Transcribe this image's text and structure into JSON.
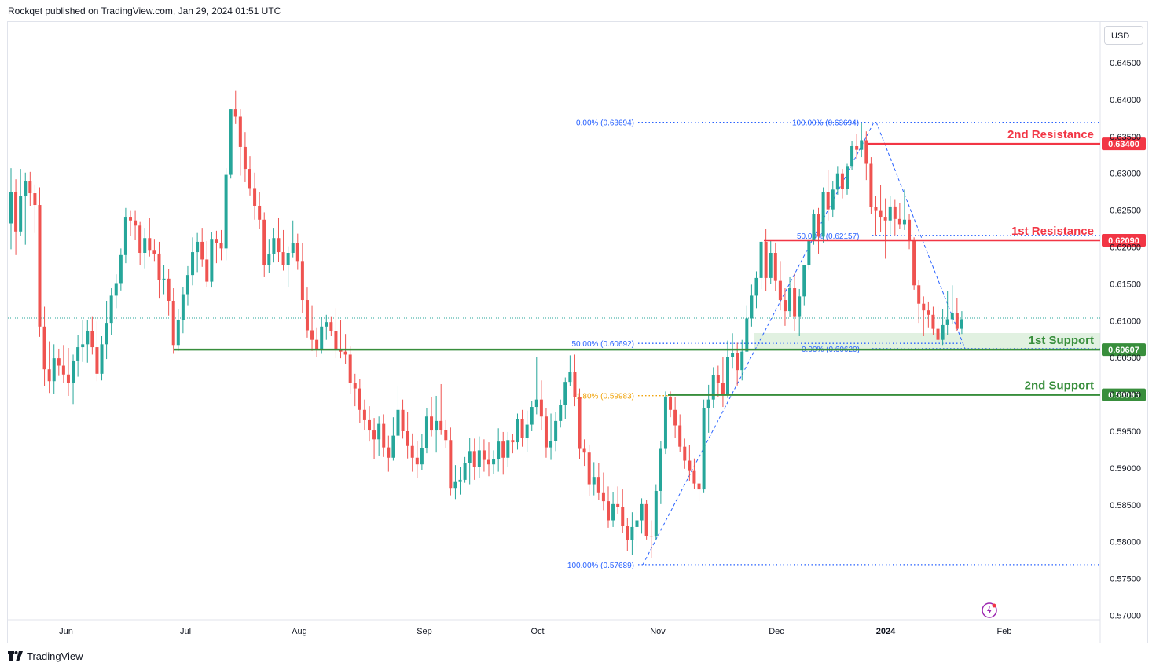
{
  "header": {
    "publisher": "Rockqet published on TradingView.com, Jan 29, 2024 01:51 UTC"
  },
  "currency": "USD",
  "footer": {
    "brand": "TradingView"
  },
  "colors": {
    "up": "#26a69a",
    "down": "#ef5350",
    "resistance": "#f23645",
    "support": "#388e3c",
    "fib": "#2962ff",
    "fib_ext": "#f0a30a",
    "support_zone": "#c8e6c9"
  },
  "chart_data": {
    "type": "candlestick",
    "title": "",
    "xlabel": "",
    "ylabel": "",
    "ylim": [
      0.5665,
      0.6485
    ],
    "x_ticks": [
      "Jun",
      "Jul",
      "Aug",
      "Sep",
      "Oct",
      "Nov",
      "Dec",
      "2024",
      "Feb"
    ],
    "y_ticks": [
      "0.64500",
      "0.64000",
      "0.63500",
      "0.63000",
      "0.62500",
      "0.62000",
      "0.61500",
      "0.61000",
      "0.60500",
      "0.60000",
      "0.59500",
      "0.59000",
      "0.58500",
      "0.58000",
      "0.57500",
      "0.57000"
    ],
    "grid": false,
    "last_price": 0.6102,
    "horizontal_levels": [
      {
        "label": "2nd Resistance",
        "value": 0.634,
        "tag": "0.63400",
        "kind": "resistance"
      },
      {
        "label": "1st Resistance",
        "value": 0.6209,
        "tag": "0.62090",
        "kind": "resistance"
      },
      {
        "label": "1st Support",
        "value": 0.60607,
        "tag": "0.60607",
        "kind": "support"
      },
      {
        "label": "2nd Support",
        "value": 0.59995,
        "tag": "0.59995",
        "kind": "support"
      }
    ],
    "fib_labels": [
      {
        "text": "0.00% (0.63694)",
        "value": 0.63694
      },
      {
        "text": "100.00% (0.63694)",
        "value": 0.63694
      },
      {
        "text": "50.00% (0.62157)",
        "value": 0.62157
      },
      {
        "text": "50.00% (0.60692)",
        "value": 0.60692
      },
      {
        "text": "0.00% (0.60620)",
        "value": 0.6062
      },
      {
        "text": "1.80% (0.59983)",
        "value": 0.59983
      },
      {
        "text": "100.00% (0.57689)",
        "value": 0.57689
      }
    ],
    "ohlc": [
      [
        0.6232,
        0.6307,
        0.6197,
        0.6275
      ],
      [
        0.6275,
        0.6292,
        0.6189,
        0.6221
      ],
      [
        0.6221,
        0.6306,
        0.6215,
        0.6269
      ],
      [
        0.6269,
        0.6301,
        0.6203,
        0.6289
      ],
      [
        0.6289,
        0.6302,
        0.6256,
        0.6273
      ],
      [
        0.6273,
        0.6285,
        0.6219,
        0.6257
      ],
      [
        0.6257,
        0.6281,
        0.6078,
        0.6092
      ],
      [
        0.6092,
        0.6119,
        0.6011,
        0.6034
      ],
      [
        0.6034,
        0.6072,
        0.6002,
        0.6018
      ],
      [
        0.6018,
        0.6068,
        0.6001,
        0.6049
      ],
      [
        0.6049,
        0.6062,
        0.6025,
        0.6039
      ],
      [
        0.6039,
        0.6067,
        0.6016,
        0.6027
      ],
      [
        0.6027,
        0.6063,
        0.5998,
        0.6016
      ],
      [
        0.6016,
        0.6054,
        0.5987,
        0.6046
      ],
      [
        0.6046,
        0.6081,
        0.6024,
        0.6064
      ],
      [
        0.6064,
        0.6101,
        0.6044,
        0.6068
      ],
      [
        0.6068,
        0.6101,
        0.6043,
        0.6086
      ],
      [
        0.6086,
        0.6106,
        0.6054,
        0.6064
      ],
      [
        0.6064,
        0.6099,
        0.6018,
        0.6028
      ],
      [
        0.6028,
        0.6079,
        0.6019,
        0.6068
      ],
      [
        0.6068,
        0.6127,
        0.6048,
        0.6097
      ],
      [
        0.6097,
        0.6144,
        0.6081,
        0.6134
      ],
      [
        0.6134,
        0.6163,
        0.6117,
        0.6151
      ],
      [
        0.6151,
        0.6198,
        0.6141,
        0.6189
      ],
      [
        0.6189,
        0.6253,
        0.6178,
        0.6241
      ],
      [
        0.6241,
        0.625,
        0.6215,
        0.6236
      ],
      [
        0.6236,
        0.625,
        0.621,
        0.6229
      ],
      [
        0.6229,
        0.6235,
        0.6175,
        0.6192
      ],
      [
        0.6192,
        0.6226,
        0.6171,
        0.6212
      ],
      [
        0.6212,
        0.6239,
        0.6187,
        0.6196
      ],
      [
        0.6196,
        0.6211,
        0.6181,
        0.6191
      ],
      [
        0.6191,
        0.6207,
        0.613,
        0.6155
      ],
      [
        0.6155,
        0.6175,
        0.6136,
        0.6157
      ],
      [
        0.6157,
        0.617,
        0.6107,
        0.6127
      ],
      [
        0.6127,
        0.6144,
        0.6055,
        0.6067
      ],
      [
        0.6067,
        0.6116,
        0.6059,
        0.6101
      ],
      [
        0.6101,
        0.6146,
        0.6083,
        0.6136
      ],
      [
        0.6136,
        0.6174,
        0.6121,
        0.6162
      ],
      [
        0.6162,
        0.6213,
        0.6148,
        0.6193
      ],
      [
        0.6193,
        0.6219,
        0.6166,
        0.6207
      ],
      [
        0.6207,
        0.6226,
        0.6173,
        0.6183
      ],
      [
        0.6183,
        0.6208,
        0.6146,
        0.6153
      ],
      [
        0.6153,
        0.622,
        0.6145,
        0.6211
      ],
      [
        0.6211,
        0.6222,
        0.6178,
        0.6205
      ],
      [
        0.6205,
        0.6223,
        0.6182,
        0.6198
      ],
      [
        0.6198,
        0.6307,
        0.6182,
        0.6298
      ],
      [
        0.6298,
        0.6387,
        0.6293,
        0.6387
      ],
      [
        0.6387,
        0.6412,
        0.6367,
        0.6377
      ],
      [
        0.6377,
        0.6387,
        0.6297,
        0.6336
      ],
      [
        0.6336,
        0.6356,
        0.6288,
        0.6306
      ],
      [
        0.6306,
        0.6323,
        0.627,
        0.628
      ],
      [
        0.628,
        0.6301,
        0.6237,
        0.6256
      ],
      [
        0.6256,
        0.6275,
        0.6224,
        0.6237
      ],
      [
        0.6237,
        0.6247,
        0.6159,
        0.6176
      ],
      [
        0.6176,
        0.6211,
        0.6165,
        0.619
      ],
      [
        0.619,
        0.6226,
        0.6179,
        0.6212
      ],
      [
        0.6212,
        0.624,
        0.618,
        0.6193
      ],
      [
        0.6193,
        0.6223,
        0.6168,
        0.6175
      ],
      [
        0.6175,
        0.6201,
        0.6146,
        0.6192
      ],
      [
        0.6192,
        0.6236,
        0.6186,
        0.6205
      ],
      [
        0.6205,
        0.6218,
        0.6169,
        0.6181
      ],
      [
        0.6181,
        0.6205,
        0.611,
        0.6128
      ],
      [
        0.6128,
        0.6145,
        0.6077,
        0.6087
      ],
      [
        0.6087,
        0.6121,
        0.6059,
        0.6074
      ],
      [
        0.6074,
        0.6091,
        0.6051,
        0.606
      ],
      [
        0.606,
        0.6105,
        0.6055,
        0.6092
      ],
      [
        0.6092,
        0.6108,
        0.6074,
        0.6098
      ],
      [
        0.6098,
        0.6106,
        0.6079,
        0.6086
      ],
      [
        0.6086,
        0.6117,
        0.6049,
        0.6061
      ],
      [
        0.6061,
        0.6101,
        0.6049,
        0.6058
      ],
      [
        0.6058,
        0.6082,
        0.6041,
        0.6054
      ],
      [
        0.6054,
        0.6065,
        0.6001,
        0.6016
      ],
      [
        0.6016,
        0.6028,
        0.5984,
        0.6008
      ],
      [
        0.6008,
        0.6021,
        0.5961,
        0.5979
      ],
      [
        0.5979,
        0.5993,
        0.5952,
        0.5965
      ],
      [
        0.5965,
        0.5984,
        0.5936,
        0.5951
      ],
      [
        0.5951,
        0.5968,
        0.5912,
        0.5939
      ],
      [
        0.5939,
        0.597,
        0.5917,
        0.596
      ],
      [
        0.596,
        0.5973,
        0.5915,
        0.5928
      ],
      [
        0.5928,
        0.5944,
        0.5895,
        0.5914
      ],
      [
        0.5914,
        0.5969,
        0.591,
        0.5944
      ],
      [
        0.5944,
        0.6011,
        0.593,
        0.5979
      ],
      [
        0.5979,
        0.5993,
        0.594,
        0.595
      ],
      [
        0.595,
        0.5976,
        0.5913,
        0.593
      ],
      [
        0.593,
        0.5947,
        0.5895,
        0.5914
      ],
      [
        0.5914,
        0.5937,
        0.5886,
        0.5905
      ],
      [
        0.5905,
        0.5946,
        0.5897,
        0.5927
      ],
      [
        0.5927,
        0.5982,
        0.592,
        0.597
      ],
      [
        0.597,
        0.5996,
        0.5943,
        0.5951
      ],
      [
        0.5951,
        0.5998,
        0.5921,
        0.5964
      ],
      [
        0.5964,
        0.6014,
        0.5945,
        0.5952
      ],
      [
        0.5952,
        0.5965,
        0.5927,
        0.5938
      ],
      [
        0.5938,
        0.5955,
        0.5863,
        0.5873
      ],
      [
        0.5873,
        0.5904,
        0.5858,
        0.5881
      ],
      [
        0.5881,
        0.5901,
        0.5864,
        0.5884
      ],
      [
        0.5884,
        0.5915,
        0.588,
        0.5907
      ],
      [
        0.5907,
        0.5941,
        0.5878,
        0.5923
      ],
      [
        0.5923,
        0.594,
        0.5884,
        0.5902
      ],
      [
        0.5902,
        0.5943,
        0.5887,
        0.5924
      ],
      [
        0.5924,
        0.5939,
        0.5895,
        0.5911
      ],
      [
        0.5911,
        0.5935,
        0.5889,
        0.5905
      ],
      [
        0.5905,
        0.5924,
        0.5892,
        0.5912
      ],
      [
        0.5912,
        0.5954,
        0.5895,
        0.5936
      ],
      [
        0.5936,
        0.5949,
        0.5891,
        0.5914
      ],
      [
        0.5914,
        0.5949,
        0.5901,
        0.5938
      ],
      [
        0.5938,
        0.5946,
        0.592,
        0.5935
      ],
      [
        0.5935,
        0.5974,
        0.5925,
        0.5967
      ],
      [
        0.5967,
        0.5979,
        0.5929,
        0.5941
      ],
      [
        0.5941,
        0.5978,
        0.5922,
        0.5959
      ],
      [
        0.5959,
        0.5991,
        0.595,
        0.5983
      ],
      [
        0.5983,
        0.6051,
        0.5973,
        0.5993
      ],
      [
        0.5993,
        0.6019,
        0.5951,
        0.597
      ],
      [
        0.597,
        0.5981,
        0.5914,
        0.5928
      ],
      [
        0.5928,
        0.5974,
        0.5911,
        0.5937
      ],
      [
        0.5937,
        0.5976,
        0.5923,
        0.5964
      ],
      [
        0.5964,
        0.5993,
        0.5955,
        0.5986
      ],
      [
        0.5986,
        0.6023,
        0.5967,
        0.6017
      ],
      [
        0.6017,
        0.6053,
        0.6011,
        0.603
      ],
      [
        0.603,
        0.6054,
        0.5984,
        0.5996
      ],
      [
        0.5996,
        0.6008,
        0.5912,
        0.5926
      ],
      [
        0.5926,
        0.5939,
        0.5903,
        0.5921
      ],
      [
        0.5921,
        0.5932,
        0.5862,
        0.5878
      ],
      [
        0.5878,
        0.5908,
        0.5863,
        0.5888
      ],
      [
        0.5888,
        0.5907,
        0.5857,
        0.5866
      ],
      [
        0.5866,
        0.5894,
        0.5843,
        0.5855
      ],
      [
        0.5855,
        0.5875,
        0.5819,
        0.5829
      ],
      [
        0.5829,
        0.5867,
        0.582,
        0.5851
      ],
      [
        0.5851,
        0.5875,
        0.5837,
        0.5847
      ],
      [
        0.5847,
        0.5871,
        0.5812,
        0.5821
      ],
      [
        0.5821,
        0.5832,
        0.5787,
        0.5802
      ],
      [
        0.5802,
        0.584,
        0.5782,
        0.582
      ],
      [
        0.582,
        0.5843,
        0.5792,
        0.5829
      ],
      [
        0.5829,
        0.5859,
        0.5811,
        0.5851
      ],
      [
        0.5851,
        0.5857,
        0.5803,
        0.5808
      ],
      [
        0.5808,
        0.5829,
        0.5778,
        0.5807
      ],
      [
        0.5807,
        0.5878,
        0.5802,
        0.5869
      ],
      [
        0.5869,
        0.5937,
        0.5851,
        0.5926
      ],
      [
        0.5926,
        0.6004,
        0.5919,
        0.5997
      ],
      [
        0.5997,
        0.6004,
        0.5969,
        0.5979
      ],
      [
        0.5979,
        0.5996,
        0.5941,
        0.5958
      ],
      [
        0.5958,
        0.5973,
        0.5922,
        0.5929
      ],
      [
        0.5929,
        0.594,
        0.5899,
        0.591
      ],
      [
        0.591,
        0.5931,
        0.5882,
        0.5896
      ],
      [
        0.5896,
        0.5913,
        0.5872,
        0.5879
      ],
      [
        0.5879,
        0.5889,
        0.5855,
        0.5871
      ],
      [
        0.5871,
        0.5993,
        0.5866,
        0.5982
      ],
      [
        0.5982,
        0.6013,
        0.5948,
        0.5993
      ],
      [
        0.5993,
        0.6037,
        0.5982,
        0.6026
      ],
      [
        0.6026,
        0.6039,
        0.5997,
        0.6016
      ],
      [
        0.6016,
        0.6051,
        0.5983,
        0.6001
      ],
      [
        0.6001,
        0.6073,
        0.5995,
        0.6051
      ],
      [
        0.6051,
        0.6083,
        0.6035,
        0.6056
      ],
      [
        0.6056,
        0.607,
        0.6012,
        0.6033
      ],
      [
        0.6033,
        0.6074,
        0.6019,
        0.6058
      ],
      [
        0.6058,
        0.6121,
        0.6058,
        0.6103
      ],
      [
        0.6103,
        0.6149,
        0.6092,
        0.6134
      ],
      [
        0.6134,
        0.6167,
        0.6117,
        0.6158
      ],
      [
        0.6158,
        0.6208,
        0.6143,
        0.6207
      ],
      [
        0.6207,
        0.6225,
        0.614,
        0.6158
      ],
      [
        0.6158,
        0.6208,
        0.615,
        0.6192
      ],
      [
        0.6192,
        0.6206,
        0.614,
        0.6154
      ],
      [
        0.6154,
        0.6181,
        0.6114,
        0.6128
      ],
      [
        0.6128,
        0.6144,
        0.6093,
        0.6113
      ],
      [
        0.6113,
        0.6159,
        0.6105,
        0.6144
      ],
      [
        0.6144,
        0.6164,
        0.6086,
        0.6106
      ],
      [
        0.6106,
        0.6143,
        0.6079,
        0.6133
      ],
      [
        0.6133,
        0.6175,
        0.6121,
        0.6175
      ],
      [
        0.6175,
        0.6214,
        0.6169,
        0.621
      ],
      [
        0.621,
        0.6251,
        0.6203,
        0.6245
      ],
      [
        0.6245,
        0.6253,
        0.6191,
        0.6214
      ],
      [
        0.6214,
        0.6281,
        0.6206,
        0.6275
      ],
      [
        0.6275,
        0.6305,
        0.6236,
        0.6251
      ],
      [
        0.6251,
        0.629,
        0.6241,
        0.6278
      ],
      [
        0.6278,
        0.631,
        0.6271,
        0.63
      ],
      [
        0.63,
        0.6306,
        0.6266,
        0.6279
      ],
      [
        0.6279,
        0.6313,
        0.6271,
        0.631
      ],
      [
        0.631,
        0.6344,
        0.6305,
        0.6337
      ],
      [
        0.6337,
        0.6354,
        0.6319,
        0.6332
      ],
      [
        0.6332,
        0.6369,
        0.6322,
        0.6345
      ],
      [
        0.6345,
        0.6357,
        0.6291,
        0.6313
      ],
      [
        0.6313,
        0.6322,
        0.6245,
        0.6254
      ],
      [
        0.6254,
        0.6269,
        0.6216,
        0.625
      ],
      [
        0.625,
        0.6284,
        0.622,
        0.6241
      ],
      [
        0.6241,
        0.6266,
        0.6184,
        0.6236
      ],
      [
        0.6236,
        0.6269,
        0.6217,
        0.6255
      ],
      [
        0.6255,
        0.6265,
        0.6216,
        0.6238
      ],
      [
        0.6238,
        0.626,
        0.6225,
        0.6231
      ],
      [
        0.6231,
        0.6278,
        0.6223,
        0.6237
      ],
      [
        0.6237,
        0.6245,
        0.6197,
        0.6208
      ],
      [
        0.6208,
        0.6213,
        0.6142,
        0.6148
      ],
      [
        0.6148,
        0.6155,
        0.6097,
        0.6123
      ],
      [
        0.6123,
        0.6133,
        0.6079,
        0.6114
      ],
      [
        0.6114,
        0.6126,
        0.6091,
        0.6108
      ],
      [
        0.6108,
        0.6119,
        0.6081,
        0.6089
      ],
      [
        0.6089,
        0.612,
        0.6069,
        0.6074
      ],
      [
        0.6074,
        0.6116,
        0.6067,
        0.6094
      ],
      [
        0.6094,
        0.614,
        0.6081,
        0.6102
      ],
      [
        0.6102,
        0.6148,
        0.6096,
        0.611
      ],
      [
        0.611,
        0.6131,
        0.6086,
        0.6089
      ],
      [
        0.6089,
        0.6113,
        0.6082,
        0.6102
      ]
    ]
  }
}
